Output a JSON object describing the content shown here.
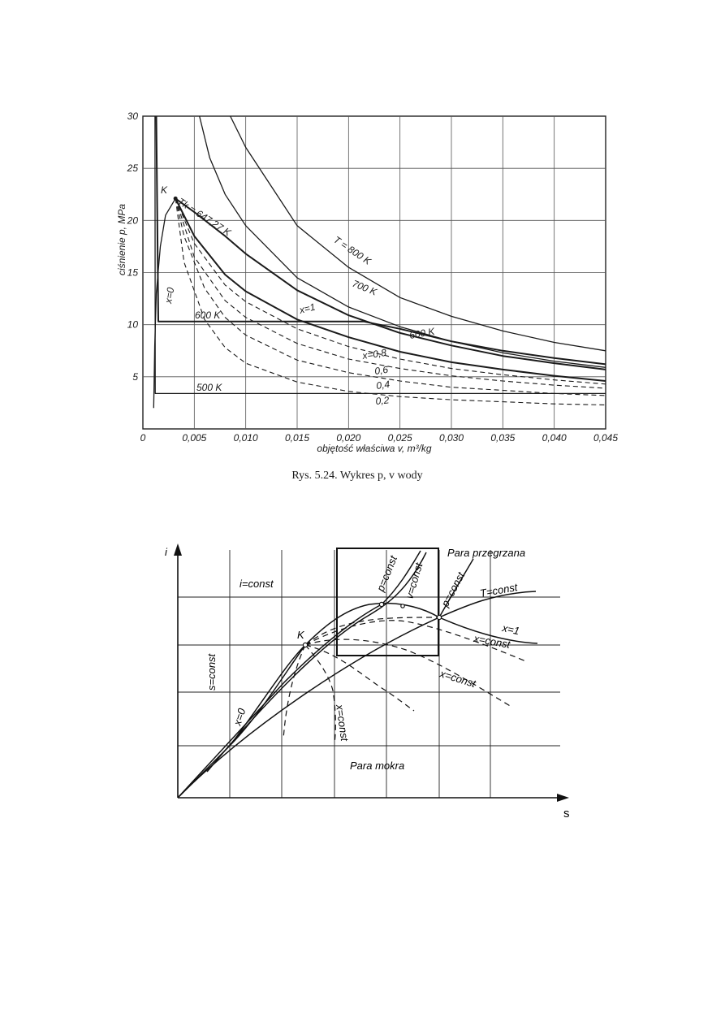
{
  "chart_data": [
    {
      "type": "line",
      "caption": "Rys. 5.24. Wykres p, v wody",
      "xlabel": "objętość właściwa v, m³/kg",
      "ylabel": "ciśnienie p, MPa",
      "xlim": [
        0,
        0.045
      ],
      "ylim": [
        0,
        30
      ],
      "x_ticks": [
        "0",
        "0,005",
        "0,010",
        "0,015",
        "0,020",
        "0,025",
        "0,030",
        "0,035",
        "0,040",
        "0,045"
      ],
      "y_ticks": [
        "5",
        "10",
        "15",
        "20",
        "25",
        "30"
      ],
      "critical_point": {
        "label": "K",
        "v": 0.00317,
        "p": 22.1
      },
      "isotherm_labels": {
        "T800": "T = 800 K",
        "T700": "700 K",
        "Tk": "Tk = 647,27 K",
        "T600_left": "600 K",
        "T600_right": "600 K",
        "T500": "500 K"
      },
      "quality_labels": [
        "x=0",
        "x=1",
        "x=0,8",
        "0,6",
        "0,4",
        "0,2"
      ],
      "series": [
        {
          "name": "T = 800 K",
          "x": [
            0.0085,
            0.01,
            0.015,
            0.02,
            0.025,
            0.03,
            0.035,
            0.04,
            0.045
          ],
          "y": [
            30,
            27,
            19.5,
            15.5,
            12.6,
            10.8,
            9.4,
            8.3,
            7.5
          ]
        },
        {
          "name": "700 K",
          "x": [
            0.0055,
            0.0065,
            0.008,
            0.01,
            0.015,
            0.02,
            0.025,
            0.03,
            0.035,
            0.04,
            0.045
          ],
          "y": [
            30,
            26,
            22.5,
            19.5,
            14.5,
            11.7,
            9.8,
            8.4,
            7.3,
            6.5,
            5.9
          ]
        },
        {
          "name": "Tk = 647,27 K",
          "x": [
            0.00317,
            0.005,
            0.008,
            0.01,
            0.015,
            0.02,
            0.025,
            0.03,
            0.035,
            0.04,
            0.045
          ],
          "y": [
            22.1,
            20.8,
            18.5,
            16.8,
            13.3,
            10.9,
            9.2,
            8.0,
            7.0,
            6.3,
            5.7
          ]
        },
        {
          "name": "x=1",
          "x": [
            0.00317,
            0.005,
            0.008,
            0.01,
            0.015,
            0.02,
            0.025,
            0.03,
            0.035,
            0.04,
            0.045
          ],
          "y": [
            22.1,
            18.5,
            14.8,
            13.2,
            10.5,
            8.8,
            7.4,
            6.4,
            5.7,
            5.1,
            4.6
          ]
        },
        {
          "name": "600 K",
          "x": [
            0.0013,
            0.0015,
            0.01,
            0.02,
            0.0215,
            0.025,
            0.03,
            0.035,
            0.04,
            0.045
          ],
          "y": [
            30,
            10.3,
            10.3,
            10.3,
            10.3,
            9.6,
            8.4,
            7.5,
            6.8,
            6.2
          ]
        },
        {
          "name": "500 K",
          "x": [
            0.00118,
            0.0012,
            0.01,
            0.02,
            0.03,
            0.04,
            0.045
          ],
          "y": [
            30,
            3.4,
            3.4,
            3.4,
            3.4,
            3.4,
            3.4
          ]
        },
        {
          "name": "x=0",
          "x": [
            0.00105,
            0.00115,
            0.0013,
            0.0017,
            0.0022,
            0.00317
          ],
          "y": [
            2.0,
            8.0,
            13.0,
            17.5,
            20.5,
            22.1
          ]
        },
        {
          "name": "x=0,8",
          "x": [
            0.00317,
            0.005,
            0.008,
            0.01,
            0.015,
            0.02,
            0.025,
            0.03,
            0.035,
            0.04,
            0.045
          ],
          "y": [
            22.1,
            17.8,
            13.8,
            12.2,
            9.6,
            7.9,
            6.7,
            5.8,
            5.2,
            4.7,
            4.3
          ]
        },
        {
          "name": "0,6",
          "x": [
            0.00317,
            0.005,
            0.008,
            0.01,
            0.015,
            0.02,
            0.025,
            0.03,
            0.035,
            0.04,
            0.045
          ],
          "y": [
            22.1,
            16.5,
            12.3,
            10.7,
            8.2,
            6.7,
            5.8,
            5.1,
            4.6,
            4.2,
            3.9
          ]
        },
        {
          "name": "0,4",
          "x": [
            0.00317,
            0.004,
            0.006,
            0.008,
            0.01,
            0.015,
            0.02,
            0.025,
            0.03,
            0.035,
            0.04,
            0.045
          ],
          "y": [
            22.1,
            18.5,
            13.5,
            10.7,
            9.0,
            6.6,
            5.4,
            4.6,
            4.0,
            3.7,
            3.4,
            3.2
          ]
        },
        {
          "name": "0,2",
          "x": [
            0.00317,
            0.004,
            0.006,
            0.008,
            0.01,
            0.015,
            0.02,
            0.025,
            0.03,
            0.035,
            0.04,
            0.045
          ],
          "y": [
            22.1,
            16.0,
            10.5,
            7.8,
            6.3,
            4.5,
            3.6,
            3.1,
            2.8,
            2.6,
            2.4,
            2.3
          ]
        }
      ]
    },
    {
      "type": "diagram",
      "xlabel": "s",
      "ylabel": "i",
      "labels": {
        "superheated": "Para  przegrzana",
        "wet": "Para   mokra",
        "i_const": "i=const",
        "s_const": "s=const",
        "x0": "x=0",
        "x1": "x=1",
        "K": "K",
        "p_const_a": "p=const",
        "v_const": "v=const",
        "p_const_b": "p=const",
        "T_const": "T=const",
        "x_const_a": "x=const",
        "x_const_b": "x=const",
        "x_const_c": "x=const"
      }
    }
  ]
}
